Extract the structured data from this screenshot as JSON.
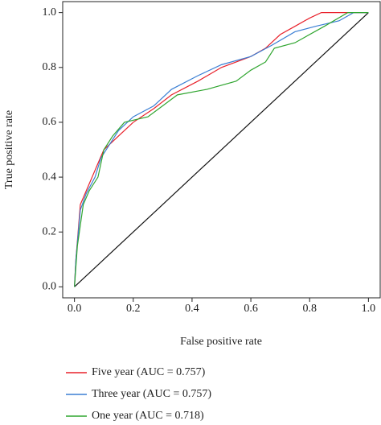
{
  "chart_data": {
    "type": "line",
    "xlabel": "False positive rate",
    "ylabel": "True positive rate",
    "xlim": [
      -0.04,
      1.04
    ],
    "ylim": [
      -0.04,
      1.04
    ],
    "xticks": [
      {
        "value": 0,
        "label": "0.0"
      },
      {
        "value": 0.2,
        "label": "0.2"
      },
      {
        "value": 0.4,
        "label": "0.4"
      },
      {
        "value": 0.6,
        "label": "0.6"
      },
      {
        "value": 0.8,
        "label": "0.8"
      },
      {
        "value": 1,
        "label": "1.0"
      }
    ],
    "yticks": [
      {
        "value": 0,
        "label": "0.0"
      },
      {
        "value": 0.2,
        "label": "0.2"
      },
      {
        "value": 0.4,
        "label": "0.4"
      },
      {
        "value": 0.6,
        "label": "0.6"
      },
      {
        "value": 0.8,
        "label": "0.8"
      },
      {
        "value": 1,
        "label": "1.0"
      }
    ],
    "diagonal": true,
    "series": [
      {
        "name": "Five year (AUC = 0.757)",
        "color": "#e8202a",
        "x": [
          0,
          0.005,
          0.02,
          0.04,
          0.06,
          0.08,
          0.1,
          0.13,
          0.15,
          0.2,
          0.27,
          0.33,
          0.42,
          0.5,
          0.6,
          0.65,
          0.7,
          0.75,
          0.8,
          0.84,
          1
        ],
        "values": [
          0,
          0.1,
          0.3,
          0.35,
          0.4,
          0.45,
          0.5,
          0.53,
          0.55,
          0.6,
          0.65,
          0.7,
          0.75,
          0.8,
          0.84,
          0.87,
          0.92,
          0.95,
          0.98,
          1,
          1
        ]
      },
      {
        "name": "Three year (AUC = 0.757)",
        "color": "#3b7fd4",
        "x": [
          0,
          0.005,
          0.02,
          0.04,
          0.07,
          0.09,
          0.12,
          0.15,
          0.2,
          0.27,
          0.33,
          0.42,
          0.5,
          0.6,
          0.67,
          0.75,
          0.82,
          0.9,
          0.95,
          1
        ],
        "values": [
          0,
          0.1,
          0.28,
          0.34,
          0.4,
          0.47,
          0.52,
          0.57,
          0.62,
          0.66,
          0.72,
          0.77,
          0.81,
          0.84,
          0.88,
          0.93,
          0.95,
          0.97,
          1,
          1
        ]
      },
      {
        "name": "One year (AUC = 0.718)",
        "color": "#2fa52f",
        "x": [
          0,
          0.01,
          0.03,
          0.05,
          0.08,
          0.1,
          0.13,
          0.17,
          0.25,
          0.3,
          0.35,
          0.45,
          0.55,
          0.6,
          0.65,
          0.68,
          0.75,
          0.85,
          0.93,
          1
        ],
        "values": [
          0,
          0.15,
          0.3,
          0.35,
          0.4,
          0.5,
          0.55,
          0.6,
          0.62,
          0.66,
          0.7,
          0.72,
          0.75,
          0.79,
          0.82,
          0.87,
          0.89,
          0.95,
          1,
          1
        ]
      }
    ]
  }
}
